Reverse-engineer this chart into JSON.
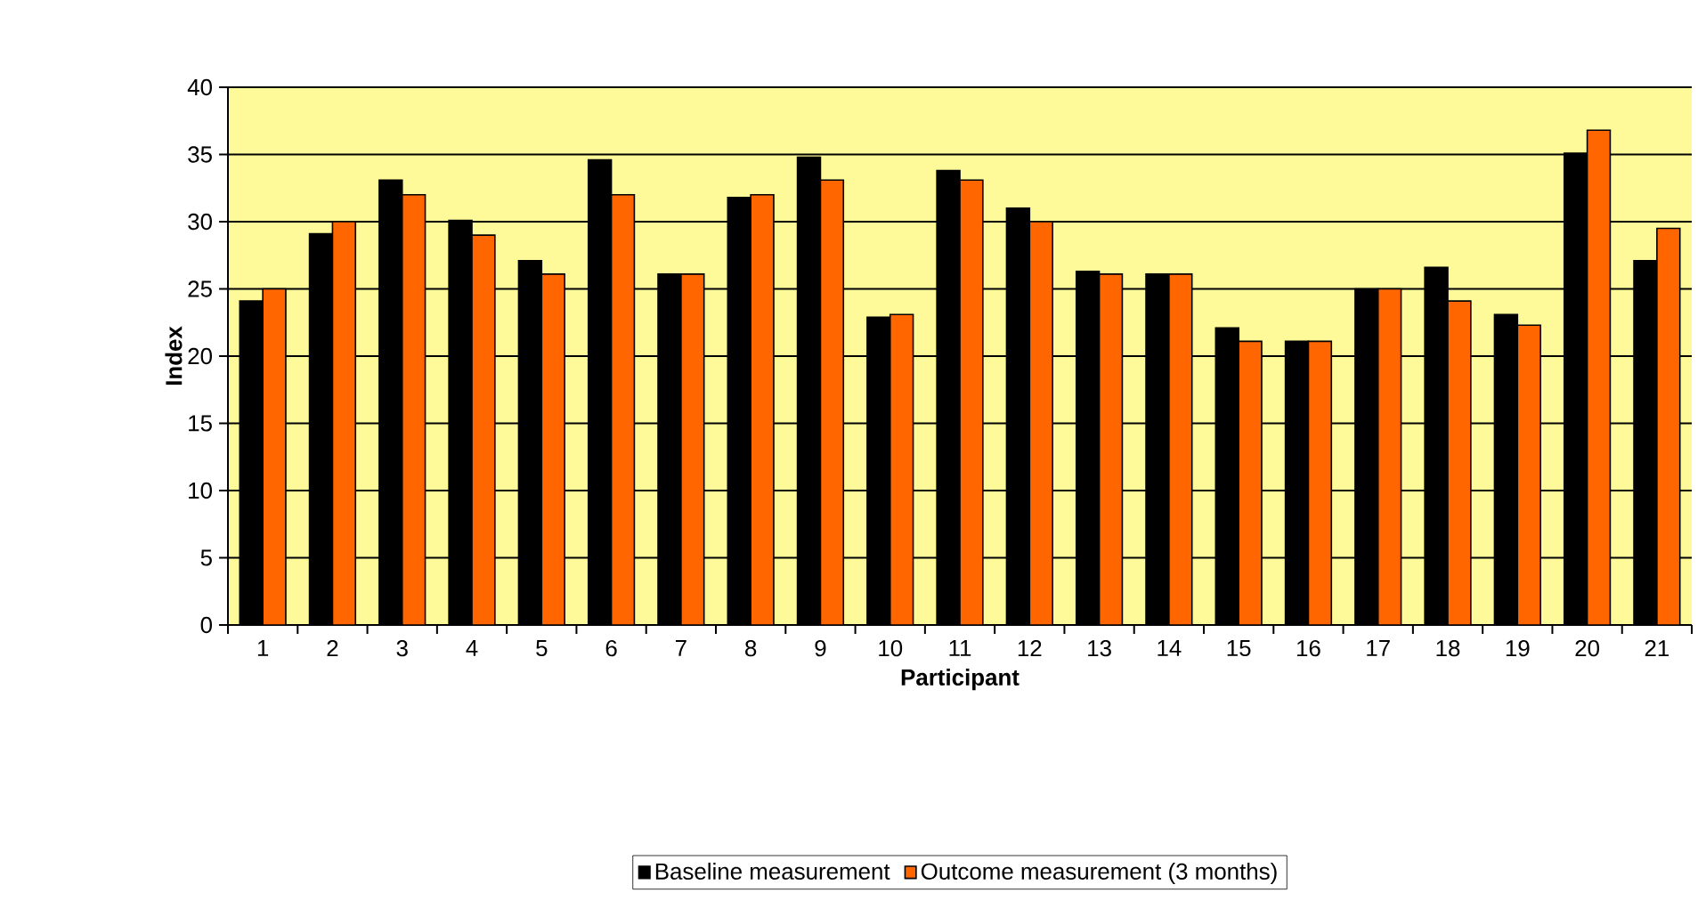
{
  "chart_data": {
    "type": "bar",
    "xlabel": "Participant",
    "ylabel": "Index",
    "categories": [
      "1",
      "2",
      "3",
      "4",
      "5",
      "6",
      "7",
      "8",
      "9",
      "10",
      "11",
      "12",
      "13",
      "14",
      "15",
      "16",
      "17",
      "18",
      "19",
      "20",
      "21"
    ],
    "series": [
      {
        "name": "Baseline measurement",
        "color": "#000000",
        "values": [
          24.1,
          29.1,
          33.1,
          30.1,
          27.1,
          34.6,
          26.1,
          31.8,
          34.8,
          22.9,
          33.8,
          31.0,
          26.3,
          26.1,
          22.1,
          21.1,
          25.0,
          26.6,
          23.1,
          35.1,
          27.1
        ]
      },
      {
        "name": "Outcome measurement (3 months)",
        "color": "#ff6600",
        "values": [
          25.0,
          30.0,
          32.0,
          29.0,
          26.1,
          32.0,
          26.1,
          32.0,
          33.1,
          23.1,
          33.1,
          30.0,
          26.1,
          26.1,
          21.1,
          21.1,
          25.0,
          24.1,
          22.3,
          36.8,
          29.5
        ]
      }
    ],
    "ylim": [
      0,
      40
    ],
    "yticks": [
      0,
      5,
      10,
      15,
      20,
      25,
      30,
      35,
      40
    ],
    "grid": "y",
    "legend": "bottom"
  }
}
